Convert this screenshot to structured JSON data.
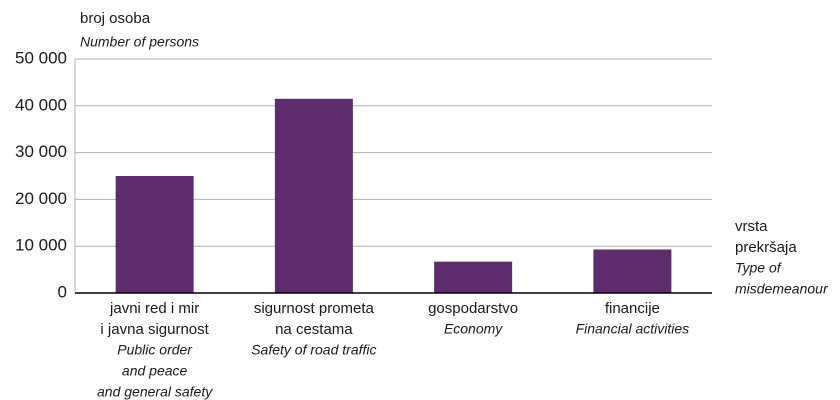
{
  "chart_data": {
    "type": "bar",
    "y_label": "broj osoba",
    "y_label_en": "Number of persons",
    "x_label": [
      "vrsta",
      "prekršaja"
    ],
    "x_label_en": [
      "Type of",
      "misdemeanour"
    ],
    "categories": [
      [
        "javni red i mir",
        "i javna sigurnost"
      ],
      [
        "sigurnost prometa",
        "na cestama"
      ],
      [
        "gospodarstvo"
      ],
      [
        "financije"
      ]
    ],
    "categories_en": [
      [
        "Public order",
        "and peace",
        "and general safety"
      ],
      [
        "Safety of road traffic"
      ],
      [
        "Economy"
      ],
      [
        "Financial activities"
      ]
    ],
    "values": [
      25000,
      41500,
      6700,
      9300
    ],
    "color": "#5c2c6b",
    "ylim": [
      0,
      50000
    ],
    "yticks": [
      0,
      {
        "value": 10000,
        "label": "10 000"
      },
      {
        "value": 20000,
        "label": "20 000"
      },
      {
        "value": 30000,
        "label": "30 000"
      },
      {
        "value": 40000,
        "label": "40 000"
      },
      {
        "value": 50000,
        "label": "50 000"
      }
    ],
    "grid": true
  }
}
